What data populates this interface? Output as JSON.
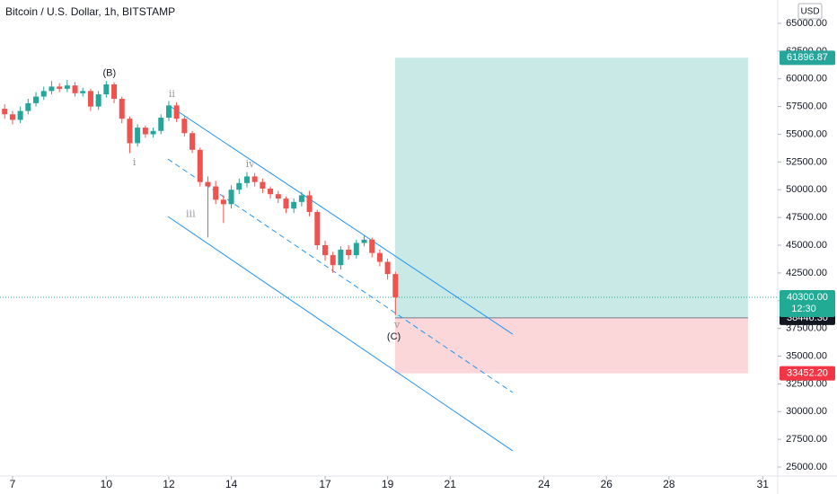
{
  "chart_data": {
    "type": "candlestick",
    "title": "Bitcoin / U.S. Dollar, 1h, BITSTAMP",
    "currency": "USD",
    "up_color": "#26a69a",
    "down_color": "#ef5350",
    "x": [
      6.75,
      7,
      7.25,
      7.5,
      7.75,
      8,
      8.25,
      8.5,
      8.75,
      9,
      9.25,
      9.5,
      9.75,
      10,
      10.25,
      10.5,
      10.75,
      11,
      11.25,
      11.5,
      11.75,
      12,
      12.25,
      12.5,
      12.75,
      13,
      13.25,
      13.5,
      13.75,
      14,
      14.25,
      14.5,
      14.75,
      15,
      15.25,
      15.5,
      15.75,
      16,
      16.25,
      16.5,
      16.75,
      17,
      17.25,
      17.5,
      17.75,
      18,
      18.25,
      18.5,
      18.75,
      19,
      19.25
    ],
    "open": [
      57300,
      56800,
      56300,
      57100,
      57800,
      58400,
      58900,
      59300,
      59100,
      59400,
      58700,
      58900,
      57500,
      58600,
      59500,
      58200,
      56400,
      54200,
      55600,
      55000,
      55300,
      56500,
      57600,
      56400,
      55100,
      53600,
      50700,
      50300,
      49100,
      48700,
      50000,
      50600,
      51200,
      50700,
      50100,
      49600,
      49200,
      48300,
      48900,
      49500,
      48000,
      45000,
      44100,
      43200,
      44600,
      44100,
      45200,
      45500,
      44300,
      43500,
      42400
    ],
    "high": [
      57700,
      57100,
      57500,
      58200,
      58800,
      59300,
      59800,
      59600,
      59900,
      59700,
      59200,
      59100,
      58900,
      59800,
      59700,
      58400,
      56600,
      55900,
      55800,
      55600,
      56800,
      58000,
      57900,
      56600,
      55300,
      53800,
      51200,
      50800,
      49500,
      50400,
      51000,
      51600,
      51500,
      51000,
      50300,
      49900,
      49400,
      49200,
      49800,
      49900,
      48200,
      45400,
      44400,
      44900,
      45000,
      45500,
      45900,
      45700,
      44600,
      43800,
      42600
    ],
    "low": [
      56400,
      55900,
      56000,
      56800,
      57500,
      58100,
      58600,
      58800,
      58800,
      58400,
      58400,
      57100,
      57200,
      58300,
      57800,
      56000,
      53300,
      53900,
      54700,
      54700,
      55000,
      56200,
      56100,
      54800,
      53300,
      50300,
      45700,
      48700,
      47000,
      48300,
      49600,
      50200,
      50300,
      49700,
      49200,
      48800,
      47900,
      47900,
      48500,
      47600,
      44600,
      43600,
      42500,
      42800,
      43700,
      43800,
      44900,
      43900,
      43100,
      41900,
      38700
    ],
    "close": [
      56800,
      56300,
      57100,
      57800,
      58400,
      58900,
      59300,
      59100,
      59400,
      58700,
      58900,
      57500,
      58600,
      59500,
      58200,
      56400,
      54200,
      55600,
      55000,
      55300,
      56500,
      57600,
      56400,
      55100,
      53600,
      50700,
      50300,
      49100,
      48700,
      50000,
      50600,
      51200,
      50700,
      50100,
      49600,
      49200,
      48300,
      48900,
      49500,
      48000,
      45000,
      44100,
      43200,
      44600,
      44100,
      45200,
      45500,
      44300,
      43500,
      42400,
      40300
    ],
    "xlim": [
      6.6,
      31.48
    ],
    "xticks": [
      7,
      10,
      12,
      14,
      17,
      19,
      21,
      24,
      26,
      28,
      31
    ],
    "ylim": [
      24190,
      67105
    ],
    "yticks": [
      {
        "value": 25000,
        "label": "25000.00"
      },
      {
        "value": 27500,
        "label": "27500.00"
      },
      {
        "value": 30000,
        "label": "30000.00"
      },
      {
        "value": 32500,
        "label": "32500.00"
      },
      {
        "value": 35000,
        "label": "35000.00"
      },
      {
        "value": 37500,
        "label": "37500.00"
      },
      {
        "value": 40000,
        "label": "40000.00"
      },
      {
        "value": 42500,
        "label": "42500.00"
      },
      {
        "value": 45000,
        "label": "45000.00"
      },
      {
        "value": 47500,
        "label": "47500.00"
      },
      {
        "value": 50000,
        "label": "50000.00"
      },
      {
        "value": 52500,
        "label": "52500.00"
      },
      {
        "value": 55000,
        "label": "55000.00"
      },
      {
        "value": 57500,
        "label": "57500.00"
      },
      {
        "value": 60000,
        "label": "60000.00"
      },
      {
        "value": 62500,
        "label": "62500.00"
      },
      {
        "value": 65000,
        "label": "65000.00"
      }
    ],
    "last_price": {
      "value": 40300,
      "label": "40300.00"
    },
    "countdown": "12:30",
    "annotations": [
      {
        "text": "(B)",
        "x": 10.1,
        "y": 60500
      },
      {
        "text": "ii",
        "x": 12.1,
        "y": 58600
      },
      {
        "text": "i",
        "x": 10.9,
        "y": 52450
      },
      {
        "text": "iii",
        "x": 12.7,
        "y": 47800
      },
      {
        "text": "iv",
        "x": 14.6,
        "y": 52300
      },
      {
        "text": "v",
        "x": 19.3,
        "y": 37800
      },
      {
        "text": "(C)",
        "x": 19.2,
        "y": 36750
      }
    ],
    "channel": [
      {
        "x": [
          12.03,
          23.0
        ],
        "y": [
          57550,
          36980
        ],
        "dashed": false
      },
      {
        "x": [
          11.97,
          23.0
        ],
        "y": [
          52770,
          31720
        ],
        "dashed": true
      },
      {
        "x": [
          11.97,
          23.0
        ],
        "y": [
          47590,
          26460
        ],
        "dashed": false
      }
    ],
    "position": {
      "x": [
        19.24,
        30.53
      ],
      "target": 61896.87,
      "entry": {
        "value": 38446.3,
        "label": "38446.30"
      },
      "stop": {
        "value": 33452.2,
        "label": "33452.20"
      }
    }
  }
}
